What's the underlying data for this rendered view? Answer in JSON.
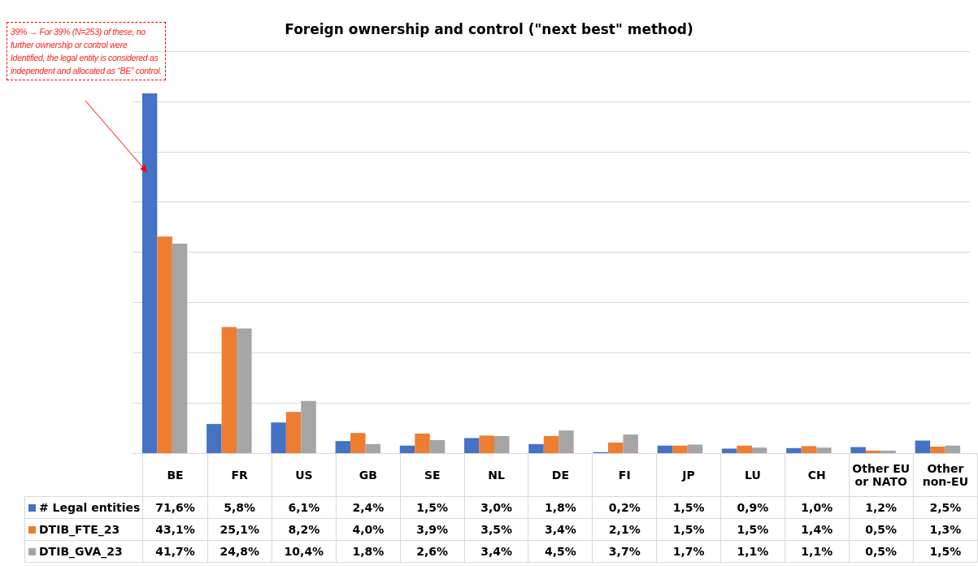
{
  "chart_data": {
    "type": "bar",
    "title": "Foreign ownership and control (\"next best\" method)",
    "categories": [
      "BE",
      "FR",
      "US",
      "GB",
      "SE",
      "NL",
      "DE",
      "FI",
      "JP",
      "LU",
      "CH",
      "Other EU or NATO",
      "Other non-EU"
    ],
    "series": [
      {
        "name": "# Legal entities",
        "color": "#4472c4",
        "values": [
          71.6,
          5.8,
          6.1,
          2.4,
          1.5,
          3.0,
          1.8,
          0.2,
          1.5,
          0.9,
          1.0,
          1.2,
          2.5
        ],
        "value_labels": [
          "71,6%",
          "5,8%",
          "6,1%",
          "2,4%",
          "1,5%",
          "3,0%",
          "1,8%",
          "0,2%",
          "1,5%",
          "0,9%",
          "1,0%",
          "1,2%",
          "2,5%"
        ]
      },
      {
        "name": "DTIB_FTE_23",
        "color": "#ed7d31",
        "values": [
          43.1,
          25.1,
          8.2,
          4.0,
          3.9,
          3.5,
          3.4,
          2.1,
          1.5,
          1.5,
          1.4,
          0.5,
          1.3
        ],
        "value_labels": [
          "43,1%",
          "25,1%",
          "8,2%",
          "4,0%",
          "3,9%",
          "3,5%",
          "3,4%",
          "2,1%",
          "1,5%",
          "1,5%",
          "1,4%",
          "0,5%",
          "1,3%"
        ]
      },
      {
        "name": "DTIB_GVA_23",
        "color": "#a5a5a5",
        "values": [
          41.7,
          24.8,
          10.4,
          1.8,
          2.6,
          3.4,
          4.5,
          3.7,
          1.7,
          1.1,
          1.1,
          0.5,
          1.5
        ],
        "value_labels": [
          "41,7%",
          "24,8%",
          "10,4%",
          "1,8%",
          "2,6%",
          "3,4%",
          "4,5%",
          "3,7%",
          "1,7%",
          "1,1%",
          "1,1%",
          "0,5%",
          "1,5%"
        ]
      }
    ],
    "ylim": [
      0,
      80
    ],
    "yticks": [
      {
        "value": 0,
        "label": null
      },
      {
        "value": 10,
        "label": null
      },
      {
        "value": 20,
        "label": null
      },
      {
        "value": 30,
        "label": null
      },
      {
        "value": 40,
        "label": null
      },
      {
        "value": 50,
        "label": null
      },
      {
        "value": 60,
        "label": null
      },
      {
        "value": 70,
        "label": null
      },
      {
        "value": 80,
        "label": null
      }
    ],
    "grid": "y",
    "tick_labels": "x",
    "legend": "bottom left",
    "annotations": [
      "39% → For 39% (N=253) of these, no further ownership or control were Identified, the legal entity is considered as independent and allocated as “BE” control."
    ]
  }
}
